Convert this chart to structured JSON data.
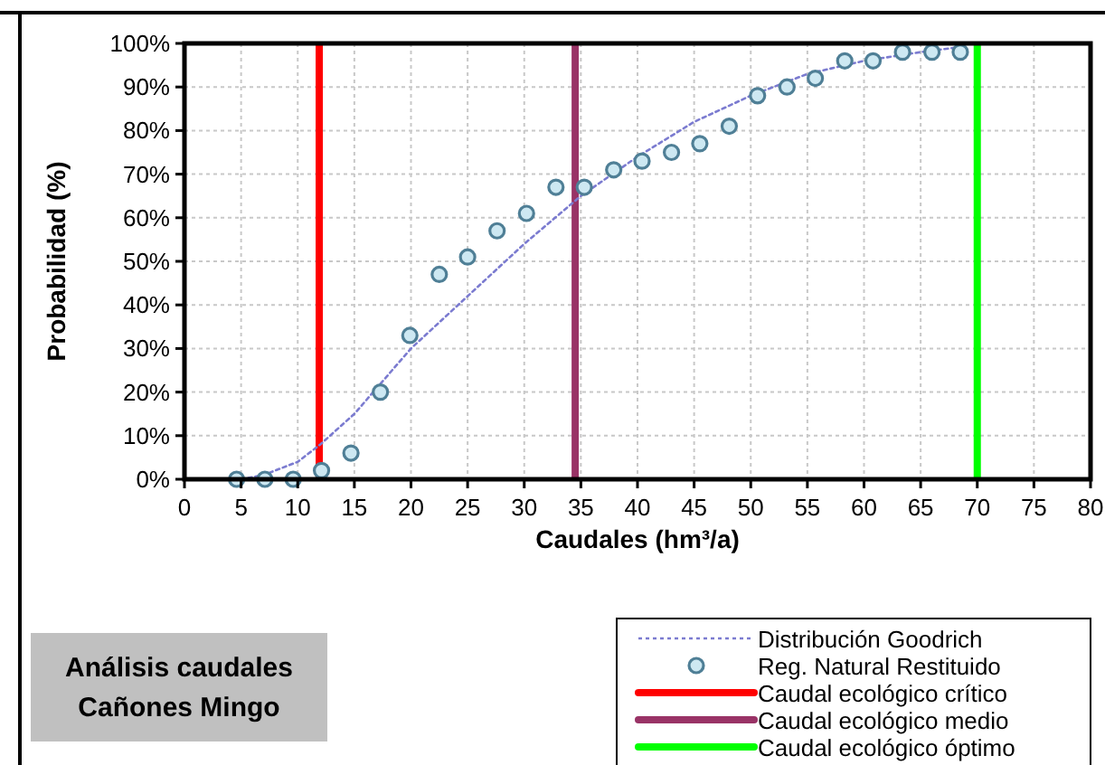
{
  "chart_data": {
    "type": "scatter",
    "xlabel": "Caudales (hm³/a)",
    "ylabel": "Probabilidad (%)",
    "xlim": [
      0,
      80
    ],
    "xticks": [
      0,
      5,
      10,
      15,
      20,
      25,
      30,
      35,
      40,
      45,
      50,
      55,
      60,
      65,
      70,
      75,
      80
    ],
    "ylim": [
      0,
      100
    ],
    "yticks": [
      {
        "value": 0,
        "label": "0%"
      },
      {
        "value": 10,
        "label": "10%"
      },
      {
        "value": 20,
        "label": "20%"
      },
      {
        "value": 30,
        "label": "30%"
      },
      {
        "value": 40,
        "label": "40%"
      },
      {
        "value": 50,
        "label": "50%"
      },
      {
        "value": 60,
        "label": "60%"
      },
      {
        "value": 70,
        "label": "70%"
      },
      {
        "value": 80,
        "label": "80%"
      },
      {
        "value": 90,
        "label": "90%"
      },
      {
        "value": 100,
        "label": "100%"
      }
    ],
    "grid": true,
    "legend": "bottom right",
    "series": [
      {
        "name": "Distribución Goodrich",
        "type": "line",
        "line_style": "dotted",
        "marker": "none",
        "color": "#7b7bd0",
        "x": [
          5,
          7,
          10,
          12,
          15,
          20,
          25,
          30,
          35,
          40,
          45,
          50,
          55,
          60,
          65,
          68
        ],
        "values": [
          0,
          1,
          4,
          8,
          15,
          30,
          42,
          54,
          65,
          74,
          82,
          88,
          93,
          96,
          98,
          99
        ]
      },
      {
        "name": "Reg. Natural Restituido",
        "marker": "circle",
        "color": "#cde8f2",
        "x": [
          4.6,
          7.1,
          9.6,
          12.1,
          14.7,
          17.3,
          19.9,
          22.5,
          25,
          27.6,
          30.2,
          32.8,
          35.3,
          37.9,
          40.4,
          43,
          45.5,
          48.1,
          50.6,
          53.2,
          55.7,
          58.3,
          60.8,
          63.4,
          66,
          68.5
        ],
        "values": [
          0,
          0,
          0,
          2,
          6,
          20,
          33,
          47,
          51,
          57,
          61,
          67,
          67,
          71,
          73,
          75,
          77,
          81,
          88,
          90,
          92,
          96,
          96,
          98,
          98,
          98
        ]
      }
    ],
    "ref_lines": [
      {
        "axis": "x",
        "value": 11.9,
        "label": "Caudal ecológico crítico",
        "color": "#ff0000"
      },
      {
        "axis": "x",
        "value": 34.5,
        "label": "Caudal ecológico medio",
        "color": "#993366"
      },
      {
        "axis": "x",
        "value": 70,
        "label": "Caudal ecológico óptimo",
        "color": "#00ff00"
      }
    ],
    "annotations": [
      "Análisis caudales\nCañones Mingo"
    ]
  }
}
